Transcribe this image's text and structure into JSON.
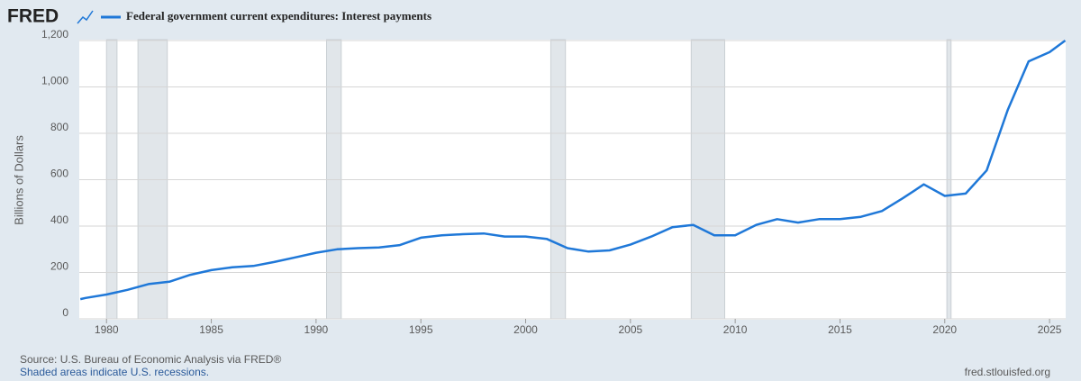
{
  "brand": "FRED",
  "chart_data": {
    "type": "line",
    "title": "Federal government current expenditures: Interest payments",
    "y_label": "Billions of Dollars",
    "source": "Source: U.S. Bureau of Economic Analysis via FRED®",
    "note": "Shaded areas indicate U.S. recessions.",
    "site": "fred.stlouisfed.org",
    "x": [
      1978.75,
      1979,
      1980,
      1981,
      1982,
      1983,
      1984,
      1985,
      1986,
      1987,
      1988,
      1989,
      1990,
      1991,
      1992,
      1993,
      1994,
      1995,
      1996,
      1997,
      1998,
      1999,
      2000,
      2001,
      2002,
      2003,
      2004,
      2005,
      2006,
      2007,
      2008,
      2009,
      2010,
      2011,
      2012,
      2013,
      2014,
      2015,
      2016,
      2017,
      2018,
      2019,
      2020,
      2021,
      2022,
      2023,
      2024,
      2025,
      2025.75
    ],
    "series": [
      {
        "name": "Federal government current expenditures: Interest payments",
        "color": "#1f78d8",
        "values": [
          85,
          90,
          105,
          125,
          150,
          160,
          190,
          210,
          222,
          228,
          245,
          265,
          285,
          300,
          305,
          308,
          318,
          350,
          360,
          365,
          368,
          355,
          355,
          345,
          305,
          290,
          295,
          320,
          355,
          395,
          405,
          360,
          360,
          405,
          430,
          415,
          430,
          430,
          440,
          465,
          520,
          580,
          530,
          540,
          640,
          900,
          1110,
          1150,
          1200
        ]
      }
    ],
    "recessions": [
      {
        "start": 1980.0,
        "end": 1980.5
      },
      {
        "start": 1981.5,
        "end": 1982.9
      },
      {
        "start": 1990.5,
        "end": 1991.2
      },
      {
        "start": 2001.2,
        "end": 2001.9
      },
      {
        "start": 2007.9,
        "end": 2009.5
      },
      {
        "start": 2020.1,
        "end": 2020.3
      }
    ],
    "recession_color": "#e1e6ea",
    "xlim": [
      1978.7,
      2025.77
    ],
    "ylim": [
      0,
      1200
    ],
    "xticks": [
      1980,
      1985,
      1990,
      1995,
      2000,
      2005,
      2010,
      2015,
      2020,
      2025
    ],
    "yticks": [
      0,
      200,
      400,
      600,
      800,
      {
        "value": 1000,
        "label": "1,000"
      },
      {
        "value": 1200,
        "label": "1,200"
      }
    ],
    "grid": true
  }
}
